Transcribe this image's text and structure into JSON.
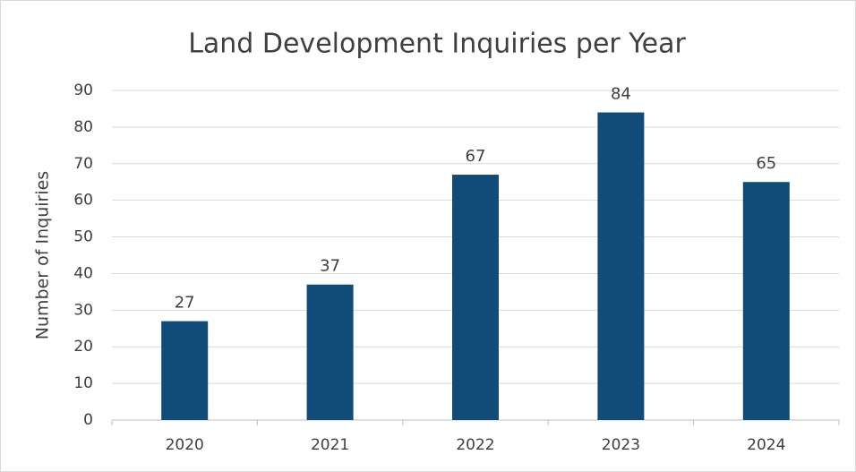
{
  "chart_data": {
    "type": "bar",
    "title": "Land Development Inquiries per Year",
    "y_label": "Number of Inquiries",
    "categories": [
      "2020",
      "2021",
      "2022",
      "2023",
      "2024"
    ],
    "values": [
      27,
      37,
      67,
      84,
      65
    ],
    "color": "#114b77",
    "ylim": [
      0,
      90
    ],
    "yticks": [
      0,
      10,
      20,
      30,
      40,
      50,
      60,
      70,
      80,
      90
    ],
    "grid": true
  }
}
